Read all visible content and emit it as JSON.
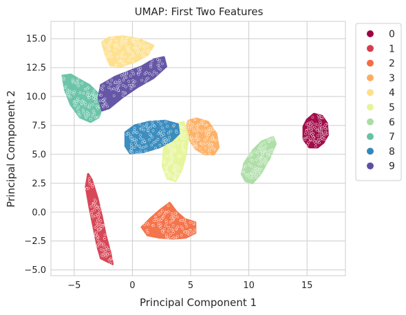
{
  "chart_data": {
    "type": "scatter",
    "title": "UMAP: First Two Features",
    "xlabel": "Principal Component 1",
    "ylabel": "Principal Component 2",
    "xlim": [
      -7.0,
      18.3
    ],
    "ylim": [
      -5.5,
      16.5
    ],
    "xticks": [
      -5,
      0,
      5,
      10,
      15
    ],
    "yticks": [
      -5.0,
      -2.5,
      0.0,
      2.5,
      5.0,
      7.5,
      10.0,
      12.5,
      15.0
    ],
    "xtick_labels": [
      "−5",
      "0",
      "5",
      "10",
      "15"
    ],
    "ytick_labels": [
      "−5.0",
      "−2.5",
      "0.0",
      "2.5",
      "5.0",
      "7.5",
      "10.0",
      "12.5",
      "15.0"
    ],
    "grid": true,
    "legend_position": "outside-right",
    "series": [
      {
        "name": "0",
        "color": "#9e0142",
        "outline": [
          [
            14.7,
            6.3
          ],
          [
            14.7,
            7.4
          ],
          [
            15.0,
            8.0
          ],
          [
            15.6,
            8.5
          ],
          [
            16.3,
            8.3
          ],
          [
            16.7,
            7.7
          ],
          [
            16.8,
            6.7
          ],
          [
            16.4,
            6.0
          ],
          [
            15.9,
            5.6
          ],
          [
            15.2,
            5.6
          ]
        ]
      },
      {
        "name": "1",
        "color": "#d53e4f",
        "outline": [
          [
            -3.8,
            3.3
          ],
          [
            -4.0,
            2.2
          ],
          [
            -3.7,
            0.5
          ],
          [
            -3.3,
            -1.5
          ],
          [
            -3.0,
            -3.0
          ],
          [
            -2.7,
            -4.0
          ],
          [
            -1.7,
            -4.5
          ],
          [
            -1.9,
            -3.5
          ],
          [
            -2.3,
            -2.0
          ],
          [
            -2.6,
            -0.5
          ],
          [
            -3.0,
            1.2
          ],
          [
            -3.5,
            2.8
          ]
        ]
      },
      {
        "name": "2",
        "color": "#f46d43",
        "outline": [
          [
            0.8,
            -1.3
          ],
          [
            1.6,
            -0.5
          ],
          [
            2.4,
            0.2
          ],
          [
            3.2,
            0.8
          ],
          [
            3.8,
            0.0
          ],
          [
            4.5,
            -0.6
          ],
          [
            5.4,
            -0.9
          ],
          [
            5.4,
            -1.8
          ],
          [
            4.6,
            -2.2
          ],
          [
            3.5,
            -2.3
          ],
          [
            2.3,
            -2.2
          ],
          [
            1.3,
            -2.0
          ]
        ]
      },
      {
        "name": "3",
        "color": "#fdae61",
        "outline": [
          [
            4.8,
            7.9
          ],
          [
            5.5,
            8.1
          ],
          [
            6.5,
            7.8
          ],
          [
            7.2,
            6.8
          ],
          [
            7.4,
            5.6
          ],
          [
            7.0,
            5.0
          ],
          [
            6.2,
            5.0
          ],
          [
            5.4,
            5.5
          ],
          [
            4.9,
            6.3
          ],
          [
            4.6,
            7.1
          ]
        ]
      },
      {
        "name": "4",
        "color": "#fee08b",
        "outline": [
          [
            -2.6,
            14.7
          ],
          [
            -2.0,
            15.1
          ],
          [
            -0.8,
            15.2
          ],
          [
            0.5,
            15.0
          ],
          [
            1.8,
            14.4
          ],
          [
            1.3,
            13.6
          ],
          [
            0.2,
            13.0
          ],
          [
            -1.0,
            12.6
          ],
          [
            -1.9,
            12.7
          ],
          [
            -2.3,
            13.6
          ]
        ]
      },
      {
        "name": "5",
        "color": "#e6f598",
        "outline": [
          [
            3.7,
            7.6
          ],
          [
            4.4,
            7.8
          ],
          [
            4.8,
            6.5
          ],
          [
            4.6,
            5.0
          ],
          [
            4.2,
            3.6
          ],
          [
            3.7,
            2.7
          ],
          [
            3.0,
            2.9
          ],
          [
            2.6,
            4.0
          ],
          [
            2.7,
            5.5
          ],
          [
            3.1,
            6.8
          ]
        ]
      },
      {
        "name": "6",
        "color": "#abdda4",
        "outline": [
          [
            9.4,
            3.3
          ],
          [
            9.6,
            4.2
          ],
          [
            10.3,
            5.3
          ],
          [
            11.1,
            6.1
          ],
          [
            12.1,
            6.5
          ],
          [
            12.3,
            5.9
          ],
          [
            11.8,
            4.7
          ],
          [
            11.0,
            3.3
          ],
          [
            10.3,
            2.5
          ],
          [
            9.7,
            2.7
          ]
        ]
      },
      {
        "name": "7",
        "color": "#66c2a5",
        "outline": [
          [
            -6.0,
            11.8
          ],
          [
            -5.3,
            11.9
          ],
          [
            -4.6,
            11.5
          ],
          [
            -3.7,
            11.0
          ],
          [
            -2.8,
            10.1
          ],
          [
            -2.6,
            9.1
          ],
          [
            -2.9,
            8.2
          ],
          [
            -3.6,
            7.8
          ],
          [
            -4.5,
            8.2
          ],
          [
            -5.3,
            9.3
          ],
          [
            -5.8,
            10.6
          ]
        ]
      },
      {
        "name": "8",
        "color": "#3288bd",
        "outline": [
          [
            -0.6,
            6.9
          ],
          [
            0.2,
            7.5
          ],
          [
            1.4,
            7.8
          ],
          [
            2.8,
            7.9
          ],
          [
            3.9,
            7.6
          ],
          [
            4.0,
            6.8
          ],
          [
            3.4,
            6.2
          ],
          [
            2.3,
            5.6
          ],
          [
            1.0,
            5.2
          ],
          [
            -0.2,
            5.1
          ],
          [
            -0.6,
            5.7
          ]
        ]
      },
      {
        "name": "9",
        "color": "#5e4fa2",
        "outline": [
          [
            -2.6,
            8.8
          ],
          [
            -2.9,
            9.9
          ],
          [
            -2.7,
            11.0
          ],
          [
            -1.5,
            11.7
          ],
          [
            -0.5,
            12.1
          ],
          [
            0.8,
            12.6
          ],
          [
            1.8,
            13.2
          ],
          [
            2.7,
            13.4
          ],
          [
            2.9,
            12.6
          ],
          [
            1.8,
            11.6
          ],
          [
            0.4,
            10.8
          ],
          [
            -0.9,
            9.9
          ],
          [
            -2.0,
            9.0
          ]
        ]
      }
    ]
  }
}
